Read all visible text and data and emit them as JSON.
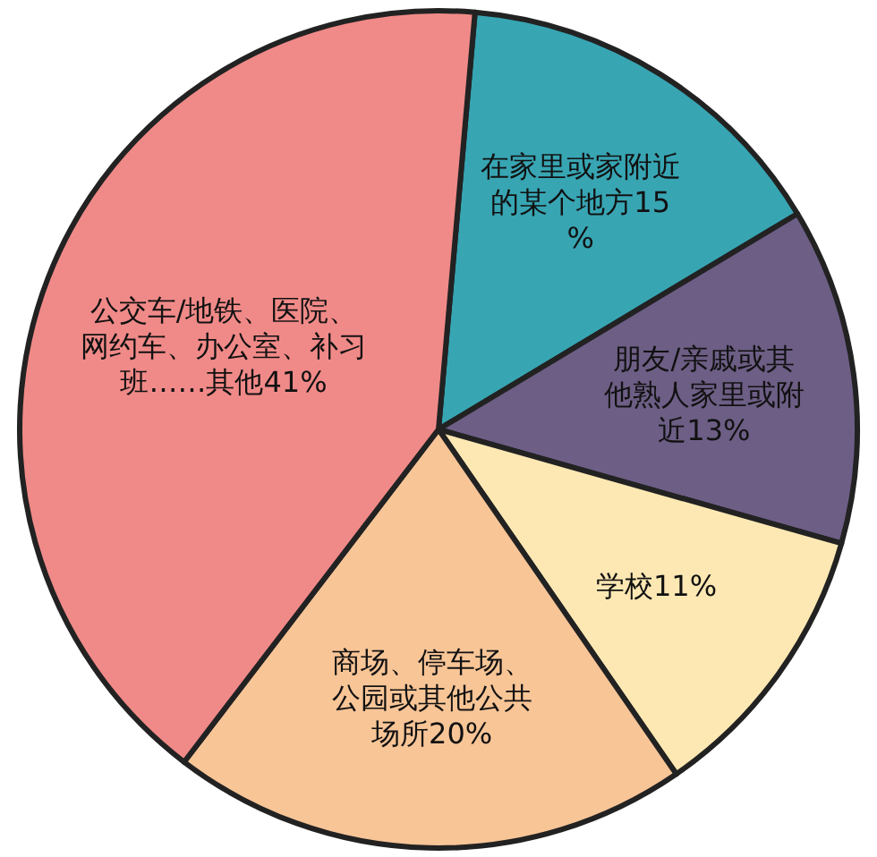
{
  "chart_data": {
    "type": "pie",
    "categories": [
      "在家里或家附近的某个地方",
      "朋友/亲戚或其他熟人家里或附近",
      "学校",
      "商场、停车场、公园或其他公共场所",
      "公交车/地铁、医院、网约车、办公室、补习班……其他"
    ],
    "values": [
      15,
      13,
      11,
      20,
      41
    ],
    "value_labels": [
      "15%",
      "13%",
      "11%",
      "20%",
      "41%"
    ],
    "colors": [
      "#38a5b3",
      "#6d5e85",
      "#fde8b3",
      "#f8c597",
      "#f08a88"
    ]
  }
}
